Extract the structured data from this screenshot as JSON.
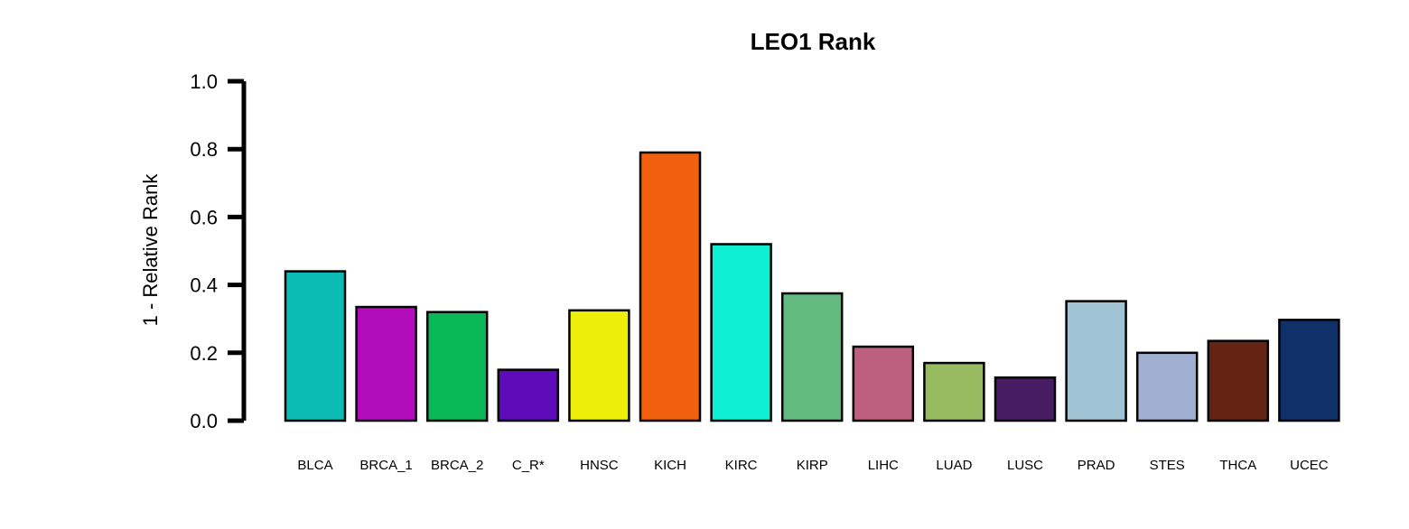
{
  "chart_data": {
    "type": "bar",
    "title": "LEO1 Rank",
    "xlabel": "",
    "ylabel": "1 - Relative Rank",
    "ylim": [
      0,
      1
    ],
    "yticks": [
      "0.0",
      "0.2",
      "0.4",
      "0.6",
      "0.8",
      "1.0"
    ],
    "categories": [
      "BLCA",
      "BRCA_1",
      "BRCA_2",
      "C_R*",
      "HNSC",
      "KICH",
      "KIRC",
      "KIRP",
      "LIHC",
      "LUAD",
      "LUSC",
      "PRAD",
      "STES",
      "THCA",
      "UCEC"
    ],
    "values": [
      0.44,
      0.335,
      0.32,
      0.15,
      0.325,
      0.79,
      0.52,
      0.375,
      0.218,
      0.17,
      0.127,
      0.352,
      0.2,
      0.235,
      0.297
    ],
    "colors": [
      "#0BBBB4",
      "#B30CBB",
      "#0AB757",
      "#5F0BB9",
      "#EEEE0B",
      "#F0600F",
      "#0EEED2",
      "#62BA80",
      "#BD607F",
      "#98BB62",
      "#481C63",
      "#A1C4D4",
      "#A0AED1",
      "#652413",
      "#0F3069"
    ],
    "grid": false,
    "legend": "none"
  }
}
